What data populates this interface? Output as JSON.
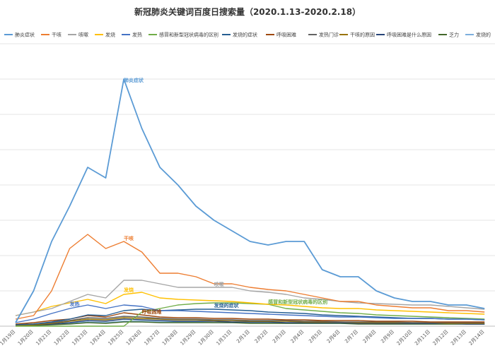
{
  "chart_data": {
    "type": "line",
    "title": "新冠肺炎关键词百度日搜索量（2020.1.13-2020.2.18）",
    "xlabel": "",
    "ylabel": "",
    "grid": true,
    "legend_position": "top",
    "categories": [
      "1月19日",
      "1月20日",
      "1月21日",
      "1月22日",
      "1月23日",
      "1月24日",
      "1月25日",
      "1月26日",
      "1月27日",
      "1月28日",
      "1月29日",
      "1月30日",
      "1月31日",
      "2月1日",
      "2月2日",
      "2月3日",
      "2月4日",
      "2月5日",
      "2月6日",
      "2月7日",
      "2月8日",
      "2月9日",
      "2月10日",
      "2月11日",
      "2月12日",
      "2月13日",
      "2月14日"
    ],
    "ylim": [
      0,
      40
    ],
    "series": [
      {
        "name": "肺炎症状",
        "color": "#5b9bd5",
        "label": "肺炎症状",
        "values": [
          0.5,
          5,
          12,
          17,
          22.5,
          21,
          35,
          28,
          22.5,
          20,
          17,
          15,
          13.5,
          12,
          11.5,
          12,
          12,
          8,
          7,
          7,
          5,
          4,
          3.5,
          3.5,
          3,
          3,
          2.5
        ]
      },
      {
        "name": "干咳",
        "color": "#ed7d31",
        "label": "干咳",
        "values": [
          1,
          1.5,
          5,
          11,
          13,
          11,
          12,
          10.5,
          7.5,
          7.5,
          7,
          6,
          6,
          5.5,
          5.2,
          5,
          4.5,
          4,
          3.5,
          3.5,
          3,
          2.8,
          2.6,
          2.6,
          2.2,
          2.2,
          2
        ]
      },
      {
        "name": "咳嗽",
        "color": "#a5a5a5",
        "label": "咳嗽",
        "values": [
          1.5,
          2,
          2.5,
          3.5,
          4.5,
          4,
          6.5,
          6.5,
          6,
          5.5,
          5.5,
          5.5,
          5.5,
          5,
          4.8,
          4.5,
          4,
          3.8,
          3.5,
          3.3,
          3.2,
          3.1,
          3,
          3,
          2.8,
          2.6,
          2.4
        ]
      },
      {
        "name": "发烧",
        "color": "#ffc000",
        "label": "发烧",
        "values": [
          1.5,
          2,
          2.8,
          3.3,
          3.8,
          3.2,
          4.5,
          4.8,
          4,
          3.8,
          3.7,
          3.6,
          3.5,
          3.3,
          3.1,
          3,
          2.8,
          2.6,
          2.5,
          2.5,
          2.3,
          2.2,
          2.1,
          2,
          1.9,
          1.8,
          1.7
        ]
      },
      {
        "name": "发热",
        "color": "#4472c4",
        "label": "发热",
        "values": [
          0.5,
          1,
          1.8,
          2.5,
          3,
          2.5,
          3,
          2.8,
          2.2,
          2.2,
          2.1,
          2,
          1.9,
          1.8,
          1.7,
          1.6,
          1.5,
          1.4,
          1.3,
          1.3,
          1.2,
          1.1,
          1.1,
          1.1,
          1,
          1,
          0.9
        ]
      },
      {
        "name": "感冒和新型冠状病毒的区别",
        "color": "#70ad47",
        "label": "感冒和新型冠状病毒的区别",
        "values": [
          0,
          0,
          0,
          0,
          0,
          0,
          0,
          2,
          2.5,
          3,
          3.2,
          3.3,
          3.3,
          3.2,
          3.1,
          2.5,
          2.3,
          2.1,
          1.9,
          1.8,
          1.6,
          1.5,
          1.4,
          1.3,
          1.2,
          1.1,
          1
        ]
      },
      {
        "name": "发烧的症状",
        "color": "#255e91",
        "label": "发烧的症状",
        "values": [
          0.2,
          0.3,
          0.6,
          1,
          1.6,
          1.5,
          2.2,
          2.4,
          2.2,
          2.3,
          2.4,
          2.4,
          2.3,
          2.2,
          2,
          1.9,
          1.8,
          1.6,
          1.5,
          1.4,
          1.3,
          1.2,
          1.1,
          1.1,
          1,
          1,
          0.9
        ]
      },
      {
        "name": "呼吸困难",
        "color": "#9e480e",
        "label": "呼吸困难",
        "values": [
          0.3,
          0.5,
          0.8,
          1,
          1.5,
          1.3,
          1.9,
          1.6,
          1.3,
          1.2,
          1.2,
          1.1,
          1.1,
          1,
          1,
          0.9,
          0.9,
          0.8,
          0.8,
          0.8,
          0.7,
          0.7,
          0.7,
          0.6,
          0.6,
          0.6,
          0.6
        ]
      },
      {
        "name": "发热门诊",
        "color": "#636363",
        "label": "",
        "values": [
          0.2,
          0.3,
          0.5,
          0.8,
          1.2,
          1.1,
          1.4,
          1.3,
          1.1,
          1,
          1,
          0.9,
          0.9,
          0.8,
          0.8,
          0.8,
          0.7,
          0.7,
          0.6,
          0.6,
          0.6,
          0.6,
          0.5,
          0.5,
          0.5,
          0.5,
          0.5
        ]
      },
      {
        "name": "干咳的原因",
        "color": "#997300",
        "label": "",
        "values": [
          0.1,
          0.2,
          0.4,
          0.7,
          1,
          0.9,
          1.2,
          1.1,
          1,
          0.9,
          0.9,
          0.8,
          0.8,
          0.7,
          0.7,
          0.7,
          0.6,
          0.6,
          0.6,
          0.5,
          0.5,
          0.5,
          0.5,
          0.5,
          0.4,
          0.4,
          0.4
        ]
      },
      {
        "name": "呼吸困难是什么原因",
        "color": "#264478",
        "label": "",
        "values": [
          0.1,
          0.2,
          0.3,
          0.5,
          0.8,
          0.7,
          1,
          0.9,
          0.8,
          0.7,
          0.7,
          0.7,
          0.6,
          0.6,
          0.6,
          0.5,
          0.5,
          0.5,
          0.5,
          0.4,
          0.4,
          0.4,
          0.4,
          0.4,
          0.4,
          0.3,
          0.3
        ]
      },
      {
        "name": "乏力",
        "color": "#43682b",
        "label": "",
        "values": [
          0.1,
          0.1,
          0.2,
          0.3,
          0.5,
          0.4,
          0.6,
          0.6,
          0.5,
          0.5,
          0.5,
          0.5,
          0.5,
          0.4,
          0.4,
          0.4,
          0.4,
          0.4,
          0.4,
          0.3,
          0.3,
          0.3,
          0.3,
          0.3,
          0.3,
          0.3,
          0.3
        ]
      },
      {
        "name": "发烧的",
        "color": "#7cafdd",
        "label": "",
        "values": [
          0.1,
          0.2,
          0.3,
          0.4,
          0.6,
          0.5,
          0.7,
          0.7,
          0.6,
          0.6,
          0.6,
          0.5,
          0.5,
          0.5,
          0.5,
          0.4,
          0.4,
          0.4,
          0.4,
          0.4,
          0.3,
          0.3,
          0.3,
          0.3,
          0.3,
          0.3,
          0.3
        ]
      }
    ]
  }
}
